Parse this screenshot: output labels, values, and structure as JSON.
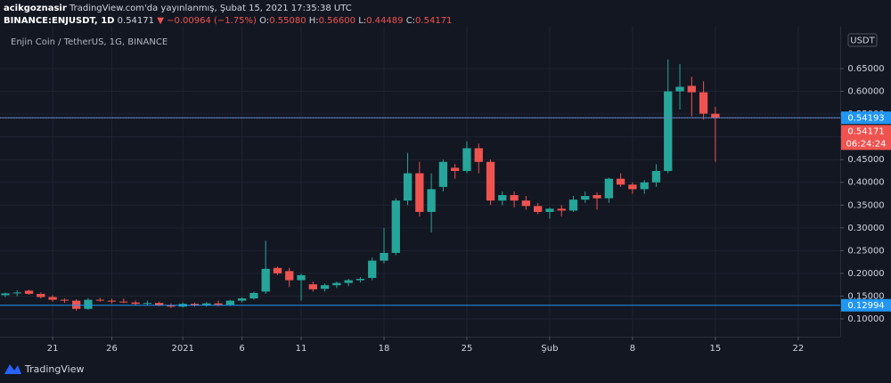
{
  "header": {
    "user": "acikgoznasir",
    "published": "TradingView.com'da yayınlanmış, Şubat 15, 2021 17:35:38 UTC",
    "symbol": "BINANCE:ENJUSDT, 1D",
    "last": "0.54171",
    "change": "▼ −0.00964 (−1.75%)",
    "o_label": "O:",
    "o": "0.55080",
    "h_label": "H:",
    "h": "0.56600",
    "l_label": "L:",
    "l": "0.44489",
    "c_label": "C:",
    "c": "0.54171"
  },
  "footer": {
    "brand": "TradingView"
  },
  "chart_data": {
    "type": "candlestick",
    "title": "Enjin Coin / TetherUS, 1G, BINANCE",
    "currency": "USDT",
    "up_color": "#26a69a",
    "down_color": "#ef5350",
    "grid": true,
    "open": [
      0.152,
      0.156,
      0.162,
      0.155,
      0.148,
      0.142,
      0.14,
      0.122,
      0.142,
      0.14,
      0.138,
      0.136,
      0.133,
      0.135,
      0.13,
      0.127,
      0.133,
      0.13,
      0.134,
      0.131,
      0.14,
      0.145,
      0.16,
      0.212,
      0.205,
      0.185,
      0.176,
      0.166,
      0.174,
      0.179,
      0.185,
      0.19,
      0.228,
      0.245,
      0.36,
      0.42,
      0.335,
      0.39,
      0.432,
      0.425,
      0.475,
      0.445,
      0.36,
      0.372,
      0.36,
      0.348,
      0.335,
      0.342,
      0.338,
      0.362,
      0.372,
      0.365,
      0.408,
      0.395,
      0.385,
      0.4,
      0.425,
      0.6,
      0.612,
      0.598,
      0.5508
    ],
    "high": [
      0.158,
      0.163,
      0.164,
      0.158,
      0.152,
      0.145,
      0.143,
      0.146,
      0.146,
      0.144,
      0.145,
      0.14,
      0.14,
      0.138,
      0.134,
      0.136,
      0.136,
      0.137,
      0.14,
      0.142,
      0.148,
      0.16,
      0.272,
      0.215,
      0.212,
      0.2,
      0.182,
      0.178,
      0.182,
      0.188,
      0.192,
      0.235,
      0.3,
      0.365,
      0.465,
      0.445,
      0.42,
      0.45,
      0.44,
      0.49,
      0.485,
      0.45,
      0.38,
      0.38,
      0.37,
      0.355,
      0.345,
      0.35,
      0.37,
      0.38,
      0.378,
      0.41,
      0.42,
      0.4,
      0.405,
      0.44,
      0.67,
      0.66,
      0.632,
      0.622,
      0.566
    ],
    "low": [
      0.148,
      0.15,
      0.153,
      0.145,
      0.138,
      0.135,
      0.118,
      0.12,
      0.138,
      0.134,
      0.135,
      0.13,
      0.13,
      0.128,
      0.124,
      0.125,
      0.127,
      0.127,
      0.128,
      0.129,
      0.136,
      0.142,
      0.155,
      0.196,
      0.17,
      0.14,
      0.16,
      0.16,
      0.168,
      0.172,
      0.18,
      0.185,
      0.222,
      0.24,
      0.35,
      0.325,
      0.29,
      0.38,
      0.408,
      0.42,
      0.42,
      0.35,
      0.35,
      0.345,
      0.34,
      0.33,
      0.32,
      0.325,
      0.335,
      0.355,
      0.34,
      0.355,
      0.39,
      0.375,
      0.375,
      0.39,
      0.42,
      0.56,
      0.545,
      0.538,
      0.44489
    ],
    "close": [
      0.156,
      0.158,
      0.155,
      0.148,
      0.142,
      0.14,
      0.122,
      0.142,
      0.14,
      0.138,
      0.136,
      0.133,
      0.135,
      0.13,
      0.127,
      0.133,
      0.13,
      0.134,
      0.131,
      0.14,
      0.145,
      0.157,
      0.21,
      0.2,
      0.185,
      0.196,
      0.165,
      0.174,
      0.179,
      0.185,
      0.188,
      0.228,
      0.245,
      0.36,
      0.42,
      0.335,
      0.385,
      0.445,
      0.425,
      0.475,
      0.445,
      0.36,
      0.372,
      0.36,
      0.348,
      0.335,
      0.342,
      0.338,
      0.362,
      0.37,
      0.365,
      0.408,
      0.395,
      0.385,
      0.4,
      0.425,
      0.6,
      0.61,
      0.598,
      0.551,
      0.54171
    ],
    "xlim": [
      -0.45,
      70.55
    ],
    "xticks": [
      {
        "value": 4,
        "label": "21"
      },
      {
        "value": 9,
        "label": "26"
      },
      {
        "value": 15,
        "label": "2021"
      },
      {
        "value": 20,
        "label": "6"
      },
      {
        "value": 25,
        "label": "11"
      },
      {
        "value": 32,
        "label": "18"
      },
      {
        "value": 39,
        "label": "25"
      },
      {
        "value": 46,
        "label": "Şub"
      },
      {
        "value": 53,
        "label": "8"
      },
      {
        "value": 60,
        "label": "15"
      },
      {
        "value": 67,
        "label": "22"
      }
    ],
    "ylim": [
      0.0609,
      0.742
    ],
    "yticks": [
      {
        "value": 0.1,
        "label": "0.10000"
      },
      {
        "value": 0.15,
        "label": "0.15000"
      },
      {
        "value": 0.2,
        "label": "0.20000"
      },
      {
        "value": 0.25,
        "label": "0.25000"
      },
      {
        "value": 0.3,
        "label": "0.30000"
      },
      {
        "value": 0.35,
        "label": "0.35000"
      },
      {
        "value": 0.4,
        "label": "0.40000"
      },
      {
        "value": 0.45,
        "label": "0.45000"
      },
      {
        "value": 0.5,
        "label": "0.50000"
      },
      {
        "value": 0.55,
        "label": "0.55000"
      },
      {
        "value": 0.6,
        "label": "0.60000"
      },
      {
        "value": 0.65,
        "label": "0.65000"
      }
    ],
    "price_lines": [
      {
        "value": 0.54193,
        "color": "#2196f3"
      },
      {
        "value": 0.12994,
        "color": "#2196f3"
      }
    ],
    "countdown": "06:24:24"
  }
}
